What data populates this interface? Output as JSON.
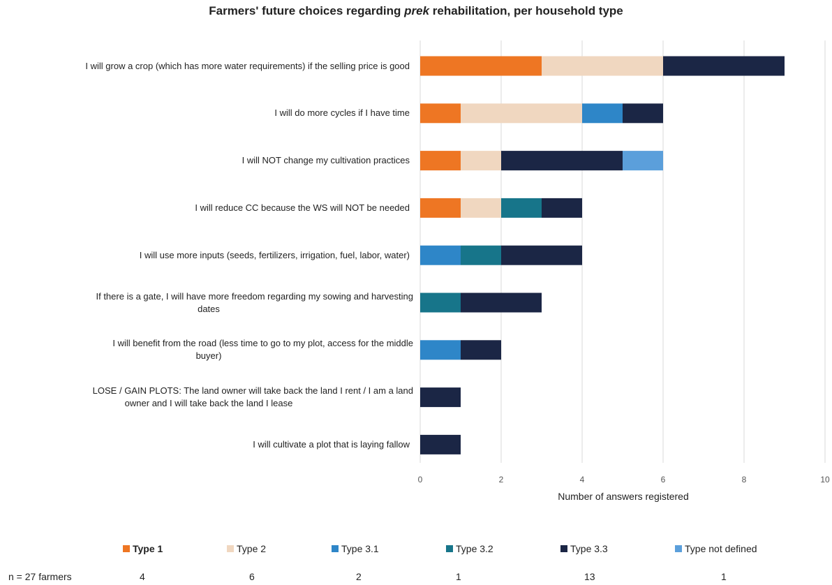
{
  "title": {
    "before": "Farmers' future choices regarding ",
    "italic": "prek",
    "after": " rehabilitation, per household type"
  },
  "chart_data": {
    "type": "bar",
    "orientation": "horizontal",
    "stacked": true,
    "title": "Farmers' future choices regarding prek rehabilitation, per household type",
    "xlabel": "Number of answers registered",
    "ylabel": "",
    "xlim": [
      0,
      10
    ],
    "xticks": [
      0,
      2,
      4,
      6,
      8,
      10
    ],
    "grid": "vertical",
    "legend_position": "bottom",
    "categories": [
      "I will grow a crop (which has more water requirements) if the selling price is good",
      "I will do more cycles if I have time",
      "I will NOT change my cultivation practices",
      "I will reduce CC because the WS will NOT be needed",
      "I will use more inputs (seeds, fertilizers, irrigation, fuel, labor, water)",
      "If there is a gate, I will have more freedom regarding my sowing and harvesting dates",
      "I will benefit from the road (less time to go to my plot, access for the middle buyer)",
      "LOSE / GAIN PLOTS: The land owner will take back the land I rent / I am a land owner and I will take back the land I lease",
      "I will cultivate a plot that is laying fallow"
    ],
    "series": [
      {
        "name": "Type 1",
        "color": "#EE7623",
        "values": [
          3,
          1,
          1,
          1,
          0,
          0,
          0,
          0,
          0
        ]
      },
      {
        "name": "Type 2",
        "color": "#F0D7C0",
        "values": [
          3,
          3,
          1,
          1,
          0,
          0,
          0,
          0,
          0
        ]
      },
      {
        "name": "Type 3.1",
        "color": "#2E86C8",
        "values": [
          0,
          1,
          0,
          0,
          1,
          0,
          1,
          0,
          0
        ]
      },
      {
        "name": "Type 3.2",
        "color": "#17758A",
        "values": [
          0,
          0,
          0,
          1,
          1,
          1,
          0,
          0,
          0
        ]
      },
      {
        "name": "Type 3.3",
        "color": "#1B2645",
        "values": [
          3,
          1,
          3,
          1,
          2,
          2,
          1,
          1,
          1
        ]
      },
      {
        "name": "Type not defined",
        "color": "#5B9FDB",
        "values": [
          0,
          0,
          1,
          0,
          0,
          0,
          0,
          0,
          0
        ]
      }
    ]
  },
  "legend": {
    "items": [
      "Type 1",
      "Type 2",
      "Type 3.1",
      "Type 3.2",
      "Type 3.3",
      "Type not defined"
    ]
  },
  "footer": {
    "n_label": "n = 27 farmers",
    "counts": [
      "4",
      "6",
      "2",
      "1",
      "13",
      "1"
    ]
  }
}
